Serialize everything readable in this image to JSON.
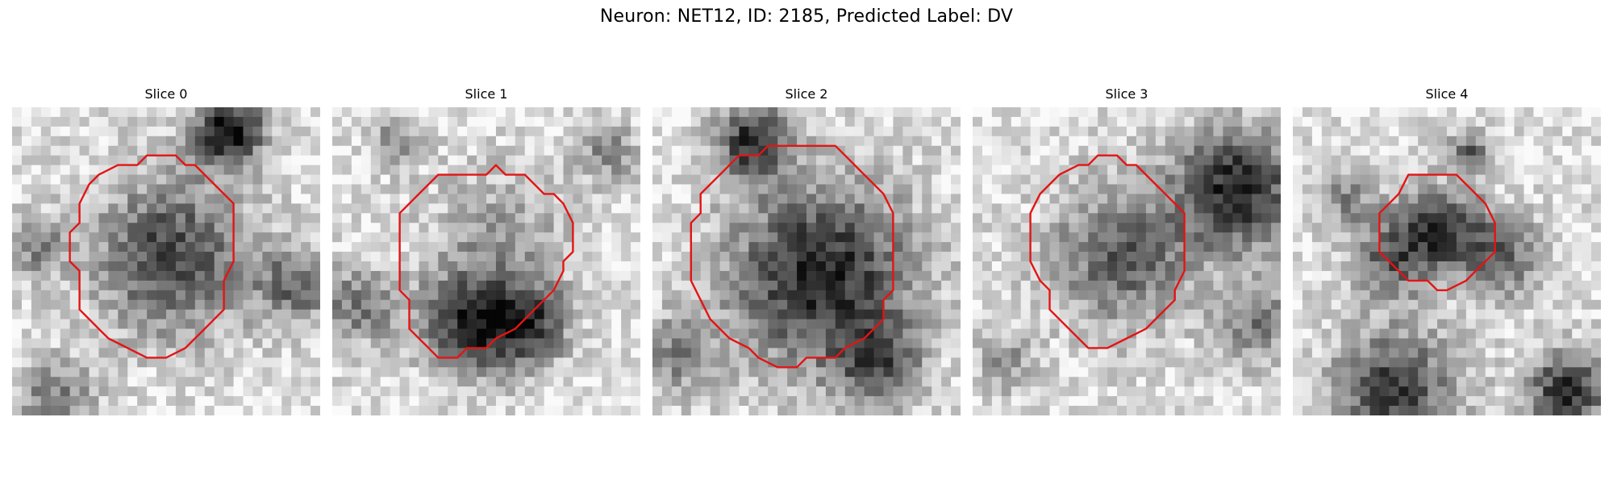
{
  "figure": {
    "title": "Neuron: NET12, ID: 2185, Predicted Label: DV"
  },
  "colors": {
    "contour": "#e41414",
    "background": "#ffffff"
  },
  "panels": [
    {
      "label": "Slice 0"
    },
    {
      "label": "Slice 1"
    },
    {
      "label": "Slice 2"
    },
    {
      "label": "Slice 3"
    },
    {
      "label": "Slice 4"
    }
  ]
}
